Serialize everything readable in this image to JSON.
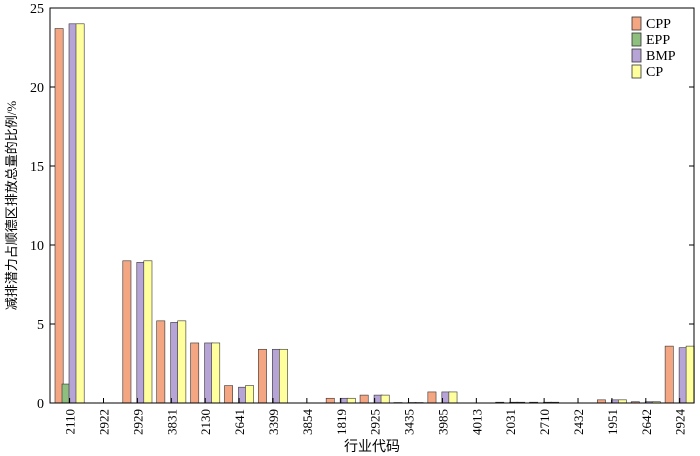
{
  "chart_data": {
    "type": "bar",
    "xlabel": "行业代码",
    "ylabel": "减排潜力占顺德区排放总量的比例/%",
    "ylim": [
      0,
      25
    ],
    "yticks": [
      0,
      5,
      10,
      15,
      20,
      25
    ],
    "grid": false,
    "legend_position": "top-right",
    "categories": [
      "2110",
      "2922",
      "2929",
      "3831",
      "2130",
      "2641",
      "3399",
      "3854",
      "1819",
      "2925",
      "3435",
      "3985",
      "4013",
      "2031",
      "2710",
      "2432",
      "1951",
      "2642",
      "2924"
    ],
    "series": [
      {
        "name": "CPP",
        "color": "#f4a582",
        "values": [
          23.7,
          0.0,
          9.0,
          5.2,
          3.8,
          1.1,
          3.4,
          0.0,
          0.3,
          0.5,
          0.03,
          0.7,
          0.0,
          0.05,
          0.05,
          0.0,
          0.2,
          0.08,
          3.6
        ]
      },
      {
        "name": "EPP",
        "color": "#8fbf7f",
        "values": [
          1.2,
          0.0,
          0.0,
          0.0,
          0.0,
          0.0,
          0.0,
          0.0,
          0.0,
          0.0,
          0.0,
          0.0,
          0.0,
          0.0,
          0.0,
          0.0,
          0.0,
          0.0,
          0.0
        ]
      },
      {
        "name": "BMP",
        "color": "#b7a4d6",
        "values": [
          24.0,
          0.0,
          8.9,
          5.1,
          3.8,
          1.0,
          3.4,
          0.0,
          0.3,
          0.5,
          0.03,
          0.7,
          0.0,
          0.05,
          0.05,
          0.0,
          0.2,
          0.08,
          3.5
        ]
      },
      {
        "name": "CP",
        "color": "#ffff9e",
        "values": [
          24.0,
          0.0,
          9.0,
          5.2,
          3.8,
          1.1,
          3.4,
          0.0,
          0.3,
          0.5,
          0.03,
          0.7,
          0.0,
          0.05,
          0.05,
          0.0,
          0.2,
          0.08,
          3.6
        ]
      }
    ]
  }
}
